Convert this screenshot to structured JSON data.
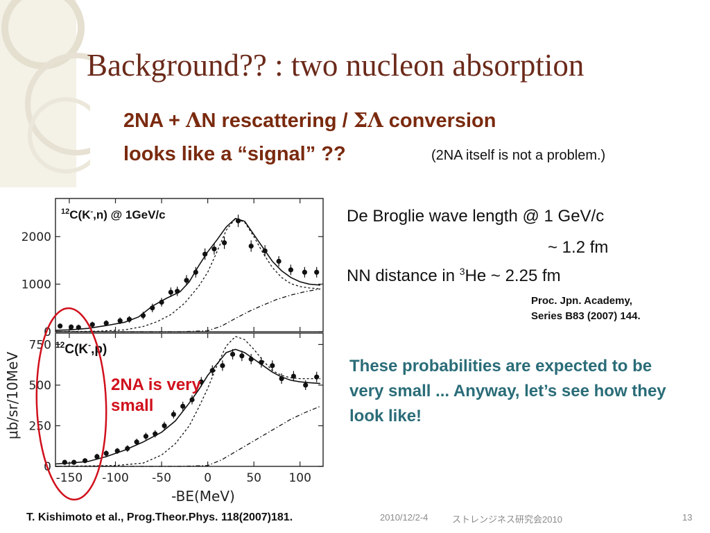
{
  "slide": {
    "title": "Background?? : two nucleon absorption",
    "subtitle_line1_pre": "2NA + ",
    "subtitle_line1_lambda": "Λ",
    "subtitle_line1_mid": "N rescattering / ",
    "subtitle_line1_sigma_lambda": "ΣΛ",
    "subtitle_line1_post": " conversion",
    "subtitle_line2": "looks like a “signal” ??",
    "note": "(2NA itself is not a problem.)",
    "de_broglie_line1": "De Broglie wave length @ 1 GeV/c",
    "de_broglie_line2": "~ 1.2 fm",
    "nn_distance_pre": "NN distance in ",
    "nn_distance_sup": "3",
    "nn_distance_post": "He  ~ 2.25 fm",
    "ref_line1": "Proc. Jpn. Academy,",
    "ref_line2": "Series B83 (2007) 144.",
    "teal_text": "These probabilities are expected to be very small ... Anyway,  let’s see how they look like!",
    "annotation_2na": "2NA is very small",
    "figure_ref": "T. Kishimoto et al., Prog.Theor.Phys. 118(2007)181.",
    "footer_date": "2010/12/2-4",
    "footer_meeting": "ストレンジネス研究会2010",
    "page_number": "13",
    "colors": {
      "title": "#6b2a1a",
      "subtitle": "#7a2a0e",
      "teal": "#2a6c78",
      "annotation": "#d0101c"
    }
  },
  "chart_data": [
    {
      "type": "scatter",
      "panel_label_sup": "12",
      "panel_label_pre": "C(K",
      "panel_label_minus": "-",
      "panel_label_post": ",n) @ 1GeV/c",
      "xlabel": "",
      "ylabel": "",
      "xlim": [
        -165,
        125
      ],
      "ylim": [
        0,
        2800
      ],
      "yticks": [
        0,
        1000,
        2000
      ],
      "ytick_labels": [
        "0",
        "1000",
        "2000"
      ],
      "points": [
        {
          "x": -160,
          "y": 120,
          "err": 50
        },
        {
          "x": -148,
          "y": 100,
          "err": 50
        },
        {
          "x": -140,
          "y": 90,
          "err": 60
        },
        {
          "x": -125,
          "y": 150,
          "err": 60
        },
        {
          "x": -110,
          "y": 180,
          "err": 60
        },
        {
          "x": -95,
          "y": 230,
          "err": 70
        },
        {
          "x": -85,
          "y": 260,
          "err": 70
        },
        {
          "x": -70,
          "y": 340,
          "err": 80
        },
        {
          "x": -60,
          "y": 500,
          "err": 90
        },
        {
          "x": -50,
          "y": 620,
          "err": 90
        },
        {
          "x": -40,
          "y": 830,
          "err": 100
        },
        {
          "x": -33,
          "y": 850,
          "err": 100
        },
        {
          "x": -23,
          "y": 1080,
          "err": 110
        },
        {
          "x": -13,
          "y": 1250,
          "err": 110
        },
        {
          "x": -3,
          "y": 1630,
          "err": 120
        },
        {
          "x": 7,
          "y": 1740,
          "err": 120
        },
        {
          "x": 18,
          "y": 1870,
          "err": 130
        },
        {
          "x": 33,
          "y": 2330,
          "err": 130
        },
        {
          "x": 47,
          "y": 1800,
          "err": 120
        },
        {
          "x": 62,
          "y": 1700,
          "err": 120
        },
        {
          "x": 77,
          "y": 1480,
          "err": 110
        },
        {
          "x": 90,
          "y": 1300,
          "err": 110
        },
        {
          "x": 105,
          "y": 1250,
          "err": 110
        },
        {
          "x": 118,
          "y": 1250,
          "err": 110
        }
      ],
      "series": [
        {
          "style": "solid",
          "x": [
            -165,
            -150,
            -130,
            -110,
            -90,
            -75,
            -60,
            -45,
            -30,
            -20,
            -10,
            0,
            10,
            20,
            30,
            40,
            50,
            60,
            70,
            80,
            90,
            100,
            110,
            122
          ],
          "y": [
            30,
            40,
            70,
            130,
            200,
            310,
            540,
            700,
            840,
            1050,
            1380,
            1680,
            1930,
            2200,
            2380,
            2320,
            2040,
            1760,
            1480,
            1280,
            1140,
            1050,
            1000,
            980
          ]
        },
        {
          "style": "dotted",
          "x": [
            -165,
            -120,
            -90,
            -70,
            -55,
            -40,
            -25,
            -10,
            0,
            10,
            20,
            30,
            40,
            50,
            60,
            70,
            80,
            90,
            100,
            110,
            122
          ],
          "y": [
            0,
            10,
            40,
            110,
            210,
            360,
            600,
            950,
            1250,
            1680,
            2130,
            2380,
            2300,
            2000,
            1650,
            1350,
            1140,
            1010,
            950,
            920,
            900
          ]
        },
        {
          "style": "dashdot",
          "x": [
            -165,
            -30,
            0,
            15,
            30,
            45,
            60,
            75,
            90,
            105,
            122
          ],
          "y": [
            0,
            0,
            20,
            120,
            280,
            430,
            560,
            680,
            770,
            840,
            900
          ]
        }
      ]
    },
    {
      "type": "scatter",
      "panel_label_sup": "12",
      "panel_label_pre": "C(K",
      "panel_label_minus": "-",
      "panel_label_post": ",p)",
      "xlabel": "-BE(MeV)",
      "ylabel": "μb/sr/10MeV",
      "xlim": [
        -165,
        125
      ],
      "ylim": [
        0,
        820
      ],
      "xticks": [
        -150,
        -100,
        -50,
        0,
        50,
        100
      ],
      "xtick_labels": [
        "-150",
        "-100",
        "-50",
        "0",
        "50",
        "100"
      ],
      "yticks": [
        0,
        250,
        500,
        750
      ],
      "ytick_labels": [
        "0",
        "250",
        "500",
        "750"
      ],
      "points": [
        {
          "x": -155,
          "y": 25,
          "err": 15
        },
        {
          "x": -145,
          "y": 25,
          "err": 15
        },
        {
          "x": -133,
          "y": 35,
          "err": 15
        },
        {
          "x": -120,
          "y": 60,
          "err": 18
        },
        {
          "x": -110,
          "y": 80,
          "err": 18
        },
        {
          "x": -98,
          "y": 95,
          "err": 18
        },
        {
          "x": -87,
          "y": 110,
          "err": 20
        },
        {
          "x": -77,
          "y": 150,
          "err": 20
        },
        {
          "x": -67,
          "y": 185,
          "err": 22
        },
        {
          "x": -57,
          "y": 200,
          "err": 22
        },
        {
          "x": -47,
          "y": 250,
          "err": 25
        },
        {
          "x": -37,
          "y": 320,
          "err": 25
        },
        {
          "x": -27,
          "y": 370,
          "err": 28
        },
        {
          "x": -17,
          "y": 410,
          "err": 28
        },
        {
          "x": -7,
          "y": 520,
          "err": 30
        },
        {
          "x": 5,
          "y": 590,
          "err": 32
        },
        {
          "x": 16,
          "y": 620,
          "err": 32
        },
        {
          "x": 27,
          "y": 690,
          "err": 32
        },
        {
          "x": 37,
          "y": 680,
          "err": 32
        },
        {
          "x": 47,
          "y": 660,
          "err": 32
        },
        {
          "x": 58,
          "y": 640,
          "err": 32
        },
        {
          "x": 70,
          "y": 620,
          "err": 32
        },
        {
          "x": 80,
          "y": 540,
          "err": 32
        },
        {
          "x": 93,
          "y": 555,
          "err": 32
        },
        {
          "x": 106,
          "y": 500,
          "err": 30
        },
        {
          "x": 118,
          "y": 550,
          "err": 32
        }
      ],
      "series": [
        {
          "style": "solid",
          "x": [
            -165,
            -150,
            -130,
            -110,
            -90,
            -70,
            -50,
            -35,
            -20,
            -10,
            0,
            10,
            20,
            30,
            40,
            50,
            60,
            70,
            80,
            90,
            100,
            110,
            122
          ],
          "y": [
            15,
            20,
            30,
            60,
            100,
            150,
            210,
            280,
            390,
            470,
            560,
            630,
            700,
            720,
            700,
            660,
            620,
            580,
            550,
            530,
            520,
            515,
            510
          ]
        },
        {
          "style": "dotted",
          "x": [
            -165,
            -100,
            -70,
            -50,
            -35,
            -20,
            -10,
            0,
            10,
            20,
            30,
            40,
            50,
            60,
            70,
            80,
            90,
            100,
            110,
            122
          ],
          "y": [
            0,
            5,
            20,
            70,
            140,
            250,
            360,
            480,
            620,
            740,
            800,
            780,
            720,
            650,
            590,
            560,
            545,
            540,
            540,
            540
          ]
        },
        {
          "style": "dashdot",
          "x": [
            -165,
            -30,
            0,
            15,
            30,
            45,
            60,
            75,
            90,
            105,
            122
          ],
          "y": [
            0,
            0,
            5,
            40,
            90,
            140,
            190,
            240,
            290,
            330,
            370
          ]
        }
      ]
    }
  ]
}
